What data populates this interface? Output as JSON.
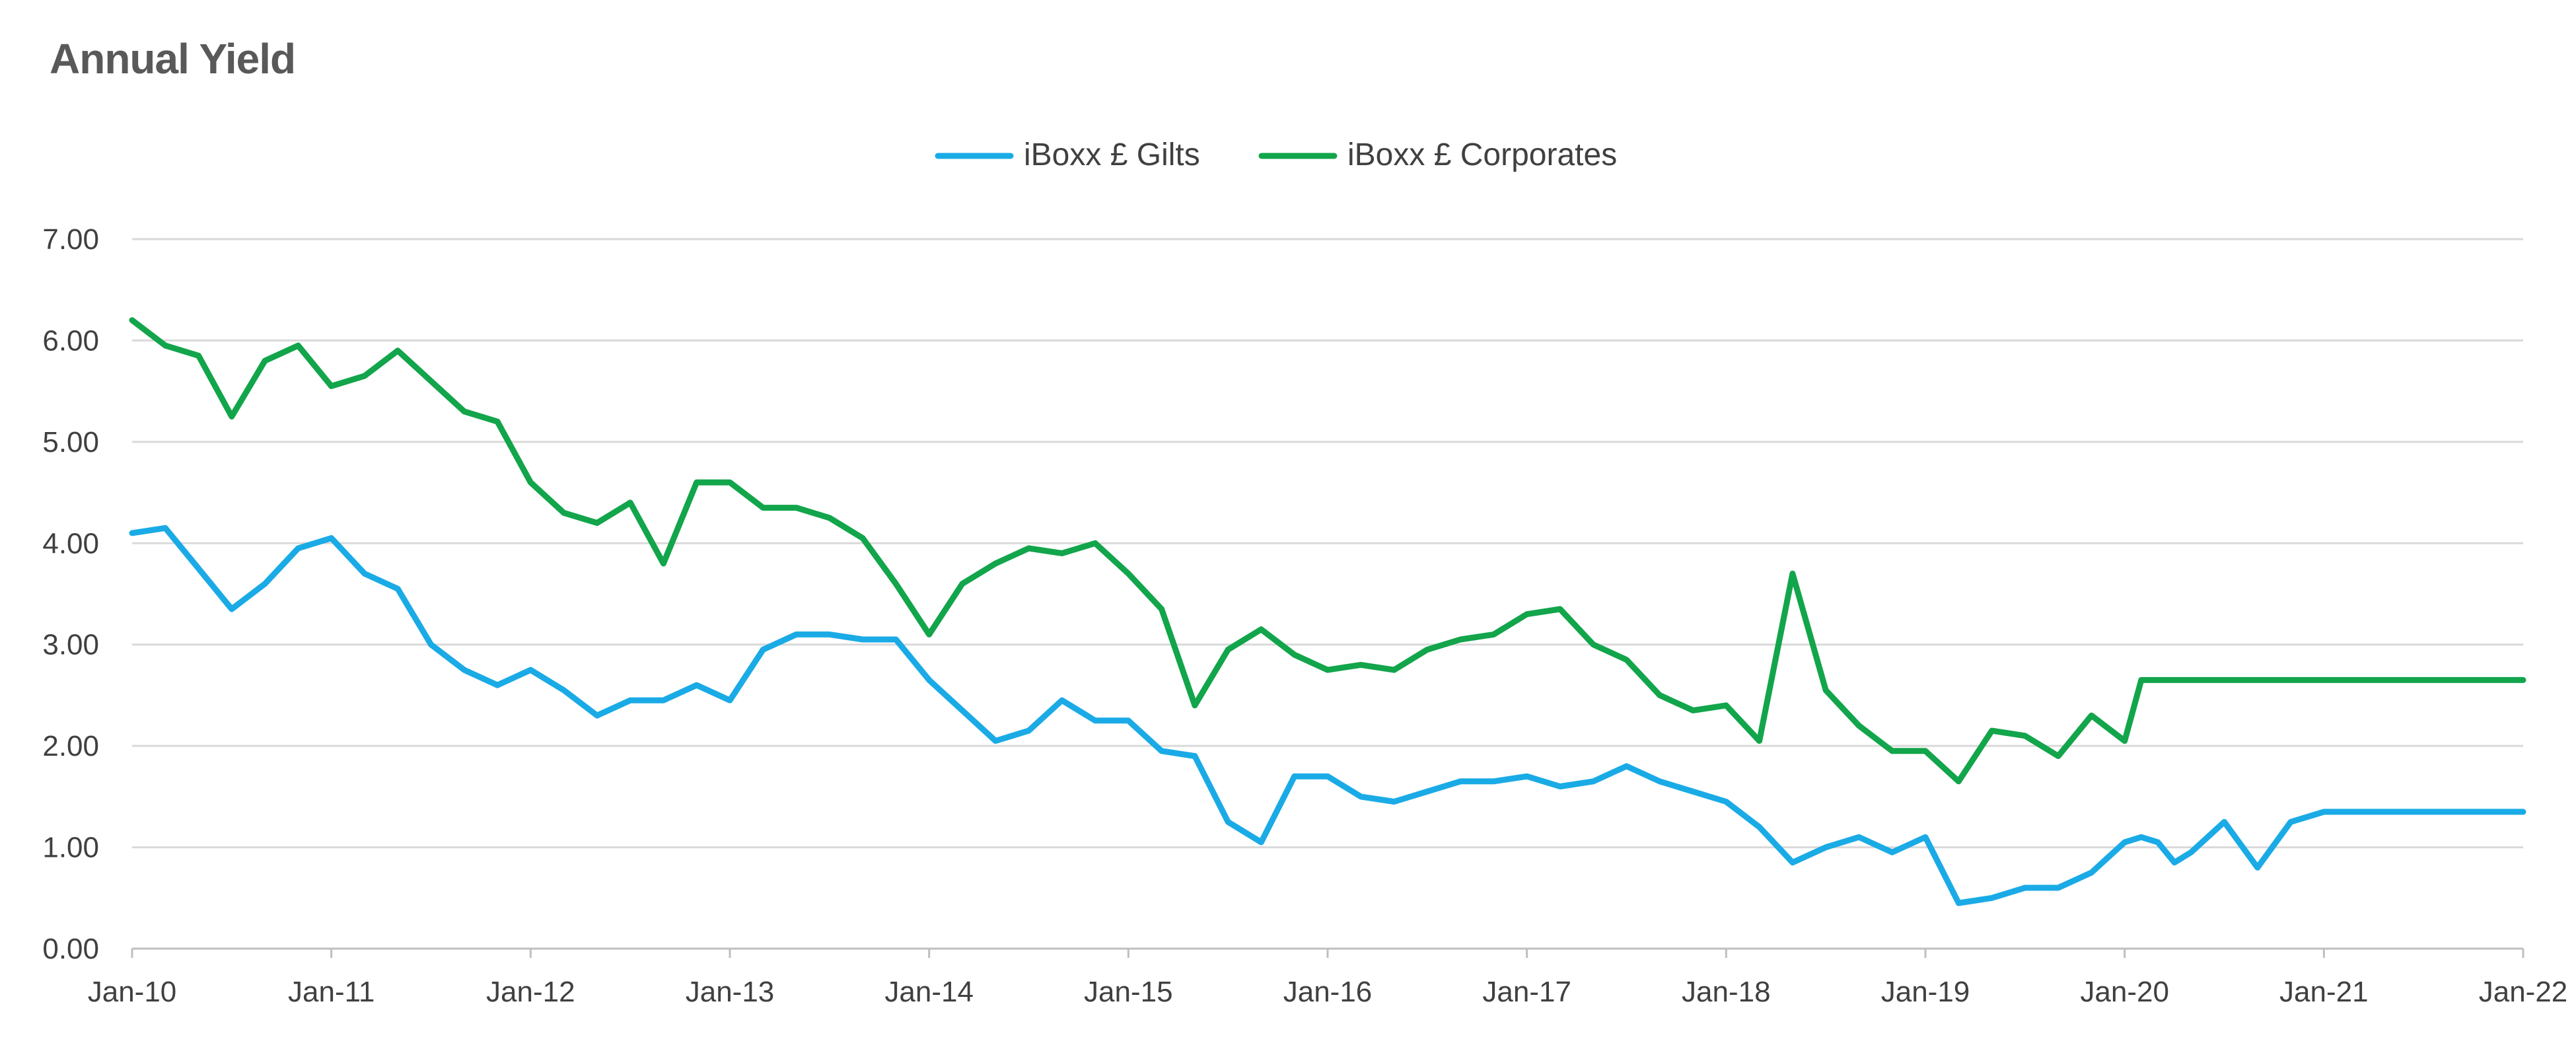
{
  "title": "Annual Yield",
  "colors": {
    "gilts": "#1aabe6",
    "corporates": "#12a54b",
    "grid": "#d9d9d9",
    "axis": "#bfbfbf",
    "text": "#404040"
  },
  "chart_data": {
    "type": "line",
    "title": "Annual Yield",
    "xlabel": "",
    "ylabel": "",
    "ylim": [
      0,
      7
    ],
    "yticks": [
      "0.00",
      "1.00",
      "2.00",
      "3.00",
      "4.00",
      "5.00",
      "6.00",
      "7.00"
    ],
    "xlim": [
      "2010-01",
      "2022-01"
    ],
    "xticks": [
      "Jan-10",
      "Jan-11",
      "Jan-12",
      "Jan-13",
      "Jan-14",
      "Jan-15",
      "Jan-16",
      "Jan-17",
      "Jan-18",
      "Jan-19",
      "Jan-20",
      "Jan-21",
      "Jan-22"
    ],
    "grid": true,
    "legend": "top-center",
    "x": [
      "2010-01",
      "2010-03",
      "2010-05",
      "2010-07",
      "2010-09",
      "2010-11",
      "2011-01",
      "2011-03",
      "2011-05",
      "2011-07",
      "2011-09",
      "2011-11",
      "2012-01",
      "2012-03",
      "2012-05",
      "2012-07",
      "2012-09",
      "2012-11",
      "2013-01",
      "2013-03",
      "2013-05",
      "2013-07",
      "2013-09",
      "2013-11",
      "2014-01",
      "2014-03",
      "2014-05",
      "2014-07",
      "2014-09",
      "2014-11",
      "2015-01",
      "2015-03",
      "2015-05",
      "2015-07",
      "2015-09",
      "2015-11",
      "2016-01",
      "2016-03",
      "2016-05",
      "2016-07",
      "2016-09",
      "2016-11",
      "2017-01",
      "2017-03",
      "2017-05",
      "2017-07",
      "2017-09",
      "2017-11",
      "2018-01",
      "2018-03",
      "2018-05",
      "2018-07",
      "2018-09",
      "2018-11",
      "2019-01",
      "2019-03",
      "2019-05",
      "2019-07",
      "2019-09",
      "2019-11",
      "2020-01",
      "2020-02",
      "2020-03",
      "2020-04",
      "2020-05",
      "2020-07",
      "2020-09",
      "2020-11",
      "2021-01",
      "2021-03",
      "2021-05",
      "2021-07",
      "2021-09",
      "2021-11",
      "2022-01"
    ],
    "series": [
      {
        "name": "iBoxx £ Gilts",
        "color": "#1aabe6",
        "values": [
          4.1,
          4.15,
          3.75,
          3.35,
          3.6,
          3.95,
          4.05,
          3.7,
          3.55,
          3.0,
          2.75,
          2.6,
          2.75,
          2.55,
          2.3,
          2.45,
          2.45,
          2.6,
          2.45,
          2.95,
          3.1,
          3.1,
          3.05,
          3.05,
          2.65,
          2.35,
          2.05,
          2.15,
          2.45,
          2.25,
          2.25,
          1.95,
          1.9,
          1.25,
          1.05,
          1.7,
          1.7,
          1.5,
          1.45,
          1.55,
          1.65,
          1.65,
          1.7,
          1.6,
          1.65,
          1.8,
          1.65,
          1.55,
          1.45,
          1.2,
          0.85,
          1.0,
          1.1,
          0.95,
          1.1,
          0.45,
          0.5,
          0.6,
          0.6,
          0.75,
          1.05,
          1.1,
          1.05,
          0.85,
          0.95,
          1.25,
          0.8,
          1.25,
          1.35,
          1.35,
          1.35,
          1.35,
          1.35,
          1.35,
          1.35
        ]
      },
      {
        "name": "iBoxx £ Corporates",
        "color": "#12a54b",
        "values": [
          6.2,
          5.95,
          5.85,
          5.25,
          5.8,
          5.95,
          5.55,
          5.65,
          5.9,
          5.6,
          5.3,
          5.2,
          4.6,
          4.3,
          4.2,
          4.4,
          3.8,
          4.6,
          4.6,
          4.35,
          4.35,
          4.25,
          4.05,
          3.6,
          3.1,
          3.6,
          3.8,
          3.95,
          3.9,
          4.0,
          3.7,
          3.35,
          2.4,
          2.95,
          3.15,
          2.9,
          2.75,
          2.8,
          2.75,
          2.95,
          3.05,
          3.1,
          3.3,
          3.35,
          3.0,
          2.85,
          2.5,
          2.35,
          2.4,
          2.05,
          3.7,
          2.55,
          2.2,
          1.95,
          1.95,
          1.65,
          2.15,
          2.1,
          1.9,
          2.3,
          2.05,
          2.65,
          2.65,
          2.65,
          2.65,
          2.65,
          2.65,
          2.65,
          2.65,
          2.65,
          2.65,
          2.65,
          2.65,
          2.65,
          2.65
        ]
      }
    ]
  }
}
